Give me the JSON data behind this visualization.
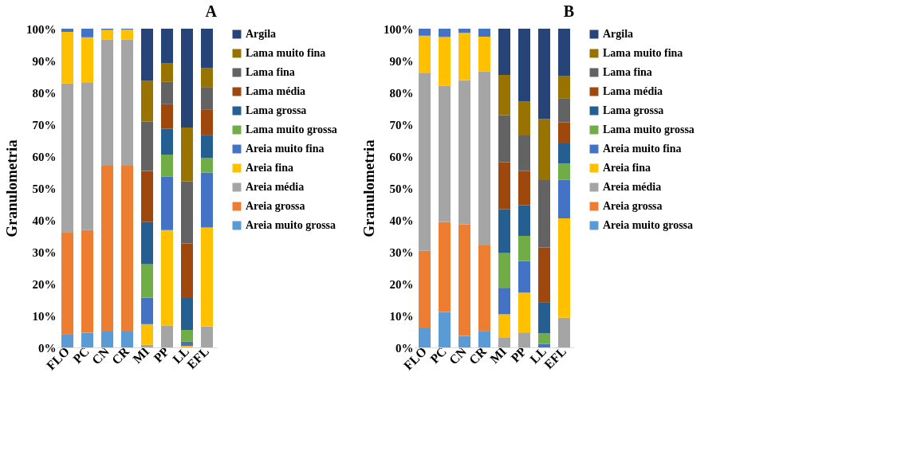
{
  "chart_data": [
    {
      "type": "bar",
      "title": "A",
      "stacked": true,
      "ylabel": "Granulometria",
      "legend": "right",
      "grid": false,
      "categories": [
        "FLO",
        "PC",
        "CN",
        "CR",
        "MI",
        "PP",
        "LL",
        "EFL"
      ],
      "ylim": [
        0,
        100
      ],
      "yticks": [
        {
          "value": 0,
          "label": "0%"
        },
        {
          "value": 10,
          "label": "10%"
        },
        {
          "value": 20,
          "label": "20%"
        },
        {
          "value": 30,
          "label": "30%"
        },
        {
          "value": 40,
          "label": "40%"
        },
        {
          "value": 50,
          "label": "50%"
        },
        {
          "value": 60,
          "label": "60%"
        },
        {
          "value": 70,
          "label": "70%"
        },
        {
          "value": 80,
          "label": "80%"
        },
        {
          "value": 90,
          "label": "90%"
        },
        {
          "value": 100,
          "label": "100%"
        }
      ],
      "series": [
        {
          "name": "Areia muito grossa",
          "color": "#5b9bd5",
          "values": [
            4.2,
            4.6,
            5.0,
            5.0,
            0,
            0,
            0,
            0
          ]
        },
        {
          "name": "Areia grossa",
          "color": "#ed7d31",
          "values": [
            32.0,
            32.2,
            52.0,
            52.0,
            0,
            0,
            0,
            0
          ]
        },
        {
          "name": "Areia média",
          "color": "#a5a5a5",
          "values": [
            46.6,
            46.4,
            39.6,
            39.6,
            0.8,
            6.9,
            0,
            6.6
          ]
        },
        {
          "name": "Areia fina",
          "color": "#ffc000",
          "values": [
            16.2,
            14.1,
            3.0,
            3.1,
            6.5,
            29.9,
            0.5,
            31.0
          ]
        },
        {
          "name": "Areia muito fina",
          "color": "#4472c4",
          "values": [
            1.0,
            2.7,
            0.4,
            0.3,
            8.3,
            16.8,
            1.3,
            17.3
          ]
        },
        {
          "name": "Lama muito grossa",
          "color": "#70ad47",
          "values": [
            0,
            0,
            0,
            0,
            10.5,
            6.9,
            3.7,
            4.5
          ]
        },
        {
          "name": "Lama grossa",
          "color": "#255e91",
          "values": [
            0,
            0,
            0,
            0,
            13.3,
            8.1,
            10.0,
            7.3
          ]
        },
        {
          "name": "Lama média",
          "color": "#9e480e",
          "values": [
            0,
            0,
            0,
            0,
            16.0,
            7.7,
            17.1,
            8.0
          ]
        },
        {
          "name": "Lama fina",
          "color": "#636363",
          "values": [
            0,
            0,
            0,
            0,
            15.5,
            7.0,
            19.5,
            7.0
          ]
        },
        {
          "name": "Lama muito fina",
          "color": "#997300",
          "values": [
            0,
            0,
            0,
            0,
            12.8,
            5.8,
            16.9,
            5.9
          ]
        },
        {
          "name": "Argila",
          "color": "#264478",
          "values": [
            0,
            0,
            0,
            0,
            16.3,
            10.9,
            31.0,
            12.4
          ]
        }
      ]
    },
    {
      "type": "bar",
      "title": "B",
      "stacked": true,
      "ylabel": "Granulometria",
      "legend": "right",
      "grid": false,
      "categories": [
        "FLO",
        "PC",
        "CN",
        "CR",
        "MI",
        "PP",
        "LL",
        "EFL"
      ],
      "ylim": [
        0,
        100
      ],
      "yticks": [
        {
          "value": 0,
          "label": "0%"
        },
        {
          "value": 10,
          "label": "10%"
        },
        {
          "value": 20,
          "label": "20%"
        },
        {
          "value": 30,
          "label": "30%"
        },
        {
          "value": 40,
          "label": "40%"
        },
        {
          "value": 50,
          "label": "50%"
        },
        {
          "value": 60,
          "label": "60%"
        },
        {
          "value": 70,
          "label": "70%"
        },
        {
          "value": 80,
          "label": "80%"
        },
        {
          "value": 90,
          "label": "90%"
        },
        {
          "value": 100,
          "label": "100%"
        }
      ],
      "series": [
        {
          "name": "Areia muito grossa",
          "color": "#5b9bd5",
          "values": [
            6.0,
            11.1,
            3.6,
            5.2,
            0,
            0,
            0,
            0
          ]
        },
        {
          "name": "Areia grossa",
          "color": "#ed7d31",
          "values": [
            24.3,
            28.3,
            35.0,
            26.8,
            0,
            0,
            0,
            0
          ]
        },
        {
          "name": "Areia média",
          "color": "#a5a5a5",
          "values": [
            55.7,
            42.7,
            45.3,
            54.6,
            3.0,
            4.7,
            0,
            9.3
          ]
        },
        {
          "name": "Areia fina",
          "color": "#ffc000",
          "values": [
            11.8,
            15.3,
            14.8,
            10.9,
            7.4,
            12.5,
            0,
            31.2
          ]
        },
        {
          "name": "Areia muito fina",
          "color": "#4472c4",
          "values": [
            2.2,
            2.6,
            1.3,
            2.5,
            8.3,
            9.9,
            1.1,
            12.1
          ]
        },
        {
          "name": "Lama muito grossa",
          "color": "#70ad47",
          "values": [
            0,
            0,
            0,
            0,
            10.9,
            7.9,
            3.3,
            5.1
          ]
        },
        {
          "name": "Lama grossa",
          "color": "#255e91",
          "values": [
            0,
            0,
            0,
            0,
            13.8,
            9.6,
            9.8,
            6.3
          ]
        },
        {
          "name": "Lama média",
          "color": "#9e480e",
          "values": [
            0,
            0,
            0,
            0,
            14.7,
            10.8,
            17.2,
            6.6
          ]
        },
        {
          "name": "Lama fina",
          "color": "#636363",
          "values": [
            0,
            0,
            0,
            0,
            14.8,
            11.1,
            21.1,
            7.6
          ]
        },
        {
          "name": "Lama muito fina",
          "color": "#997300",
          "values": [
            0,
            0,
            0,
            0,
            12.6,
            10.7,
            19.2,
            6.9
          ]
        },
        {
          "name": "Argila",
          "color": "#264478",
          "values": [
            0,
            0,
            0,
            0,
            14.5,
            22.8,
            28.3,
            14.9
          ]
        }
      ]
    }
  ]
}
